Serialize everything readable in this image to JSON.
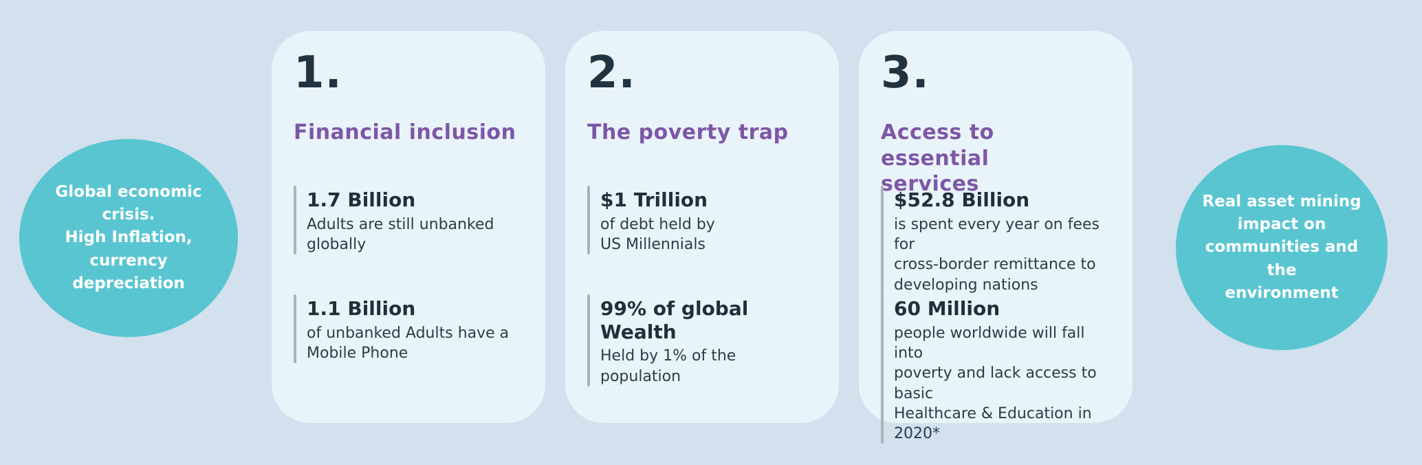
{
  "colors": {
    "page_background": "#d2e1ed",
    "card_background": "#e9f3fa",
    "circle_teal": "#59c5d1",
    "heading_purple": "#7d57a6",
    "text_dark": "#223340",
    "stat_bar_gray": "#a9b3ba"
  },
  "left_circle": {
    "text": "Global economic\ncrisis.\nHigh Inflation,\ncurrency\ndepreciation"
  },
  "right_circle": {
    "text": "Real asset  mining\nimpact on\ncommunities and the\nenvironment"
  },
  "cards": [
    {
      "number": "1.",
      "title": "Financial inclusion",
      "stats": [
        {
          "value": "1.7 Billion",
          "description": "Adults are still unbanked\nglobally"
        },
        {
          "value": "1.1 Billion",
          "description": "of unbanked Adults have a\nMobile Phone"
        }
      ]
    },
    {
      "number": "2.",
      "title": "The poverty trap",
      "stats": [
        {
          "value": "$1 Trillion",
          "description": "of debt held by\nUS Millennials"
        },
        {
          "value": "99% of global Wealth",
          "description": "Held by 1% of the\npopulation"
        }
      ]
    },
    {
      "number": "3.",
      "title": "Access to essential\nservices",
      "stats": [
        {
          "value": "$52.8 Billion",
          "description": "is spent every year on fees for\ncross-border remittance to\ndeveloping nations"
        },
        {
          "value": "60 Million",
          "description": "people worldwide will fall into\npoverty and lack access to basic\nHealthcare & Education in 2020*"
        }
      ]
    }
  ]
}
